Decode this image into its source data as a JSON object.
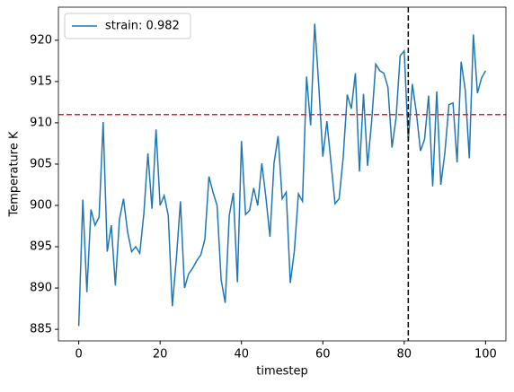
{
  "chart_data": {
    "type": "line",
    "xlabel": "timestep",
    "ylabel": "Temperature K",
    "x": [
      0,
      1,
      2,
      3,
      4,
      5,
      6,
      7,
      8,
      9,
      10,
      11,
      12,
      13,
      14,
      15,
      16,
      17,
      18,
      19,
      20,
      21,
      22,
      23,
      24,
      25,
      26,
      27,
      28,
      29,
      30,
      31,
      32,
      33,
      34,
      35,
      36,
      37,
      38,
      39,
      40,
      41,
      42,
      43,
      44,
      45,
      46,
      47,
      48,
      49,
      50,
      51,
      52,
      53,
      54,
      55,
      56,
      57,
      58,
      59,
      60,
      61,
      62,
      63,
      64,
      65,
      66,
      67,
      68,
      69,
      70,
      71,
      72,
      73,
      74,
      75,
      76,
      77,
      78,
      79,
      80,
      81,
      82,
      83,
      84,
      85,
      86,
      87,
      88,
      89,
      90,
      91,
      92,
      93,
      94,
      95,
      96,
      97,
      98,
      99,
      100
    ],
    "series": [
      {
        "name": "strain: 0.982",
        "color": "#1f77b4",
        "values": [
          885.4,
          900.7,
          889.5,
          899.5,
          897.6,
          898.6,
          910.1,
          894.4,
          897.6,
          890.3,
          898.3,
          900.8,
          896.8,
          894.4,
          895.0,
          894.2,
          899.0,
          906.3,
          899.6,
          909.2,
          900.0,
          901.2,
          898.8,
          887.8,
          893.6,
          900.5,
          890.0,
          891.7,
          892.4,
          893.3,
          894.0,
          895.9,
          903.5,
          901.6,
          900.0,
          891.0,
          888.2,
          898.8,
          901.5,
          890.7,
          907.8,
          898.9,
          899.4,
          902.1,
          900.0,
          905.1,
          901.0,
          896.2,
          905.1,
          908.4,
          900.8,
          901.6,
          890.6,
          894.5,
          901.4,
          900.5,
          915.6,
          909.7,
          922.0,
          914.5,
          905.9,
          910.2,
          905.2,
          900.2,
          900.8,
          905.8,
          913.4,
          911.7,
          916.0,
          904.1,
          913.5,
          904.8,
          910.2,
          917.1,
          916.3,
          916.0,
          914.3,
          907.0,
          910.6,
          918.1,
          918.7,
          907.8,
          914.7,
          911.2,
          906.6,
          908.0,
          913.3,
          902.3,
          913.8,
          902.5,
          906.4,
          912.2,
          912.4,
          905.2,
          917.4,
          914.0,
          905.7,
          920.7,
          913.6,
          915.4,
          916.3
        ]
      }
    ],
    "hlines": [
      {
        "value": 911,
        "color": "#d62728"
      }
    ],
    "vlines": [
      {
        "value": 81,
        "color": "#000000"
      }
    ],
    "xlim": [
      -5,
      105
    ],
    "ylim": [
      883.6,
      924.0
    ],
    "xticks": [
      0,
      20,
      40,
      60,
      80,
      100
    ],
    "yticks": [
      885,
      890,
      895,
      900,
      905,
      910,
      915,
      920
    ],
    "legend": "upper left"
  }
}
